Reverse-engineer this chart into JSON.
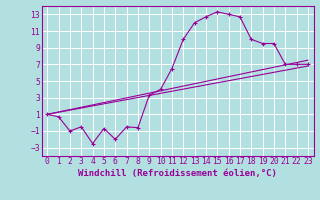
{
  "background_color": "#b2e0e0",
  "grid_color": "#ffffff",
  "line_color": "#990099",
  "marker": "+",
  "xlabel": "Windchill (Refroidissement éolien,°C)",
  "ylim": [
    -4,
    14
  ],
  "xlim": [
    -0.5,
    23.5
  ],
  "yticks": [
    -3,
    -1,
    1,
    3,
    5,
    7,
    9,
    11,
    13
  ],
  "xticks": [
    0,
    1,
    2,
    3,
    4,
    5,
    6,
    7,
    8,
    9,
    10,
    11,
    12,
    13,
    14,
    15,
    16,
    17,
    18,
    19,
    20,
    21,
    22,
    23
  ],
  "series1_x": [
    0,
    1,
    2,
    3,
    4,
    5,
    6,
    7,
    8,
    9,
    10,
    11,
    12,
    13,
    14,
    15,
    16,
    17,
    18,
    19,
    20,
    21,
    22,
    23
  ],
  "series1_y": [
    1.0,
    0.7,
    -1.0,
    -0.5,
    -2.5,
    -0.7,
    -2.0,
    -0.5,
    -0.6,
    3.3,
    4.0,
    6.5,
    10.0,
    12.0,
    12.7,
    13.3,
    13.0,
    12.7,
    10.0,
    9.5,
    9.5,
    7.0,
    7.0,
    7.0
  ],
  "series2_x": [
    0,
    23
  ],
  "series2_y": [
    1.0,
    6.8
  ],
  "series3_x": [
    0,
    23
  ],
  "series3_y": [
    1.0,
    7.5
  ],
  "font_family": "monospace",
  "xlabel_fontsize": 6.5,
  "tick_fontsize": 5.8,
  "figwidth": 3.2,
  "figheight": 2.0,
  "dpi": 100
}
